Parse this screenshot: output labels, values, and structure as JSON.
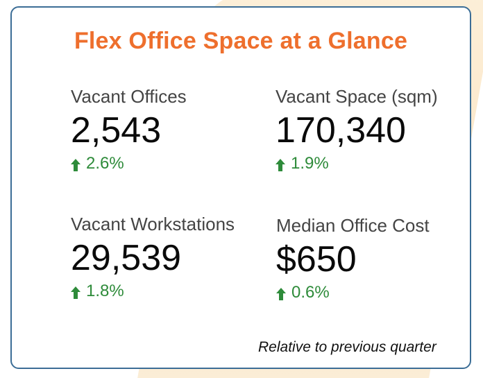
{
  "title": "Flex Office Space at a Glance",
  "metrics": [
    {
      "label": "Vacant Offices",
      "value": "2,543",
      "change": "2.6%",
      "direction": "up"
    },
    {
      "label": "Vacant Space (sqm)",
      "value": "170,340",
      "change": "1.9%",
      "direction": "up"
    },
    {
      "label": "Vacant Workstations",
      "value": "29,539",
      "change": "1.8%",
      "direction": "up"
    },
    {
      "label": "Median Office Cost",
      "value": "$650",
      "change": "0.6%",
      "direction": "up"
    }
  ],
  "footnote": "Relative to previous quarter",
  "icons": {
    "change_indicator": "arrow-up-icon"
  },
  "colors": {
    "title": "#ee6f2d",
    "positive_change": "#2e8b3a",
    "card_border": "#3b6d96",
    "background_accent": "#fbe6c8"
  }
}
